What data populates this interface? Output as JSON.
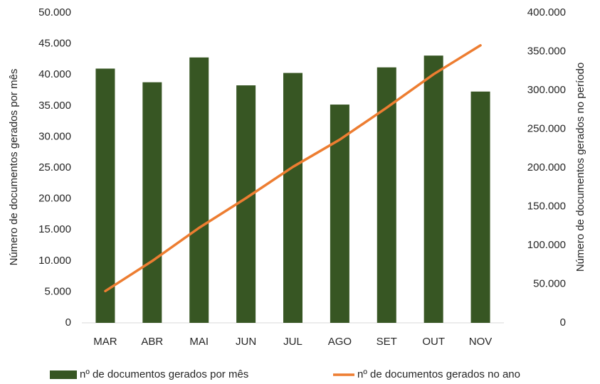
{
  "chart_data": {
    "type": "bar-line",
    "categories": [
      "MAR",
      "ABR",
      "MAI",
      "JUN",
      "JUL",
      "AGO",
      "SET",
      "OUT",
      "NOV"
    ],
    "series": [
      {
        "name": "nº de documentos gerados por mês",
        "type": "bar",
        "color": "#375623",
        "axis": "y",
        "values": [
          41000,
          38800,
          42800,
          38300,
          40300,
          35200,
          41200,
          43100,
          37300
        ]
      },
      {
        "name": "nº de documentos gerados no ano",
        "type": "line",
        "color": "#ed7d31",
        "axis": "y2",
        "values": [
          41000,
          79800,
          122600,
          160900,
          201200,
          236400,
          277600,
          320700,
          358000
        ]
      }
    ],
    "ylabel": "Número de documentos gerados por mês",
    "y2label": "Número de documentos gerados no período",
    "ylim": [
      0,
      50000
    ],
    "yticks": [
      0,
      {
        "value": 5000,
        "label": "5.000"
      },
      {
        "value": 10000,
        "label": "10.000"
      },
      {
        "value": 15000,
        "label": "15.000"
      },
      {
        "value": 20000,
        "label": "20.000"
      },
      {
        "value": 25000,
        "label": "25.000"
      },
      {
        "value": 30000,
        "label": "30.000"
      },
      {
        "value": 35000,
        "label": "35.000"
      },
      {
        "value": 40000,
        "label": "40.000"
      },
      {
        "value": 45000,
        "label": "45.000"
      },
      {
        "value": 50000,
        "label": "50.000"
      }
    ],
    "y2lim": [
      0,
      400000
    ],
    "y2ticks": [
      0,
      {
        "value": 50000,
        "label": "50.000"
      },
      {
        "value": 100000,
        "label": "100.000"
      },
      {
        "value": 150000,
        "label": "150.000"
      },
      {
        "value": 200000,
        "label": "200.000"
      },
      {
        "value": 250000,
        "label": "250.000"
      },
      {
        "value": 300000,
        "label": "300.000"
      },
      {
        "value": 350000,
        "label": "350.000"
      },
      {
        "value": 400000,
        "label": "400.000"
      }
    ],
    "grid": false,
    "legend": "bottom"
  }
}
